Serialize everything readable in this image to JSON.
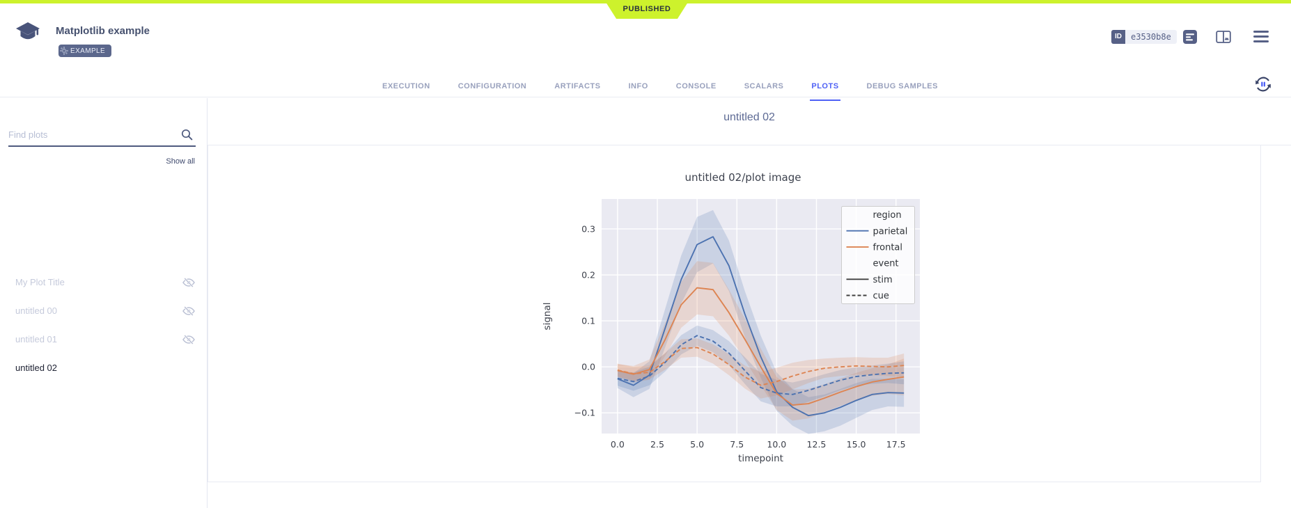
{
  "status_ribbon": {
    "label": "PUBLISHED"
  },
  "colors": {
    "ribbon": "#cdf22c",
    "active_tab": "#4f61f5",
    "accent_slate": "#566086"
  },
  "header": {
    "title": "Matplotlib example",
    "tag": "EXAMPLE",
    "id_label": "ID",
    "id_value": "e3530b8e"
  },
  "tabs": [
    {
      "label": "EXECUTION",
      "active": false
    },
    {
      "label": "CONFIGURATION",
      "active": false
    },
    {
      "label": "ARTIFACTS",
      "active": false
    },
    {
      "label": "INFO",
      "active": false
    },
    {
      "label": "CONSOLE",
      "active": false
    },
    {
      "label": "SCALARS",
      "active": false
    },
    {
      "label": "PLOTS",
      "active": true
    },
    {
      "label": "DEBUG SAMPLES",
      "active": false
    }
  ],
  "sidebar": {
    "search_placeholder": "Find plots",
    "search_value": "",
    "show_all": "Show all",
    "items": [
      {
        "label": "My Plot Title",
        "hidden": true
      },
      {
        "label": "untitled 00",
        "hidden": true
      },
      {
        "label": "untitled 01",
        "hidden": true
      },
      {
        "label": "untitled 02",
        "hidden": false,
        "selected": true
      }
    ]
  },
  "main": {
    "group_title": "untitled 02"
  },
  "chart_data": {
    "type": "line",
    "title": "untitled 02/plot image",
    "xlabel": "timepoint",
    "ylabel": "signal",
    "xlim": [
      -1,
      19
    ],
    "ylim": [
      -0.145,
      0.365
    ],
    "xticks": [
      0.0,
      2.5,
      5.0,
      7.5,
      10.0,
      12.5,
      15.0,
      17.5
    ],
    "yticks": [
      -0.1,
      0.0,
      0.1,
      0.2,
      0.3
    ],
    "grid": true,
    "background": "#eaeaf2",
    "x": [
      0,
      1,
      2,
      3,
      4,
      5,
      6,
      7,
      8,
      9,
      10,
      11,
      12,
      13,
      14,
      15,
      16,
      17,
      18
    ],
    "series": [
      {
        "name": "parietal-stim",
        "region": "parietal",
        "event": "stim",
        "color": "#4c72b0",
        "dash": false,
        "values": [
          -0.026,
          -0.04,
          -0.018,
          0.085,
          0.19,
          0.266,
          0.283,
          0.22,
          0.115,
          0.022,
          -0.054,
          -0.088,
          -0.106,
          -0.1,
          -0.088,
          -0.073,
          -0.06,
          -0.056,
          -0.057
        ],
        "ci": [
          0.02,
          0.026,
          0.03,
          0.042,
          0.052,
          0.06,
          0.058,
          0.055,
          0.05,
          0.046,
          0.042,
          0.04,
          0.04,
          0.04,
          0.04,
          0.038,
          0.034,
          0.03,
          0.03
        ]
      },
      {
        "name": "frontal-stim",
        "region": "frontal",
        "event": "stim",
        "color": "#dd8452",
        "dash": false,
        "values": [
          -0.008,
          -0.016,
          -0.006,
          0.06,
          0.135,
          0.172,
          0.168,
          0.118,
          0.06,
          0.0,
          -0.058,
          -0.083,
          -0.08,
          -0.068,
          -0.055,
          -0.043,
          -0.033,
          -0.027,
          -0.022
        ],
        "ci": [
          0.014,
          0.018,
          0.022,
          0.036,
          0.05,
          0.058,
          0.058,
          0.05,
          0.045,
          0.04,
          0.036,
          0.034,
          0.032,
          0.03,
          0.03,
          0.03,
          0.03,
          0.032,
          0.04
        ]
      },
      {
        "name": "parietal-cue",
        "region": "parietal",
        "event": "cue",
        "color": "#4c72b0",
        "dash": true,
        "values": [
          -0.025,
          -0.032,
          -0.02,
          0.01,
          0.048,
          0.068,
          0.056,
          0.03,
          -0.008,
          -0.045,
          -0.057,
          -0.06,
          -0.051,
          -0.04,
          -0.029,
          -0.021,
          -0.017,
          -0.014,
          -0.013
        ],
        "ci": [
          0.016,
          0.02,
          0.02,
          0.02,
          0.021,
          0.022,
          0.024,
          0.026,
          0.029,
          0.03,
          0.029,
          0.026,
          0.025,
          0.024,
          0.022,
          0.02,
          0.02,
          0.021,
          0.025
        ]
      },
      {
        "name": "frontal-cue",
        "region": "frontal",
        "event": "cue",
        "color": "#dd8452",
        "dash": true,
        "values": [
          -0.007,
          -0.015,
          -0.012,
          0.012,
          0.04,
          0.042,
          0.028,
          0.005,
          -0.022,
          -0.04,
          -0.032,
          -0.02,
          -0.01,
          -0.003,
          0.0,
          0.002,
          0.001,
          0.0,
          0.003
        ],
        "ci": [
          0.014,
          0.015,
          0.015,
          0.018,
          0.02,
          0.02,
          0.021,
          0.023,
          0.025,
          0.029,
          0.03,
          0.029,
          0.025,
          0.021,
          0.02,
          0.019,
          0.019,
          0.02,
          0.026
        ]
      }
    ],
    "legend": {
      "position": "upper right",
      "entries": [
        {
          "label": "region",
          "type": "header"
        },
        {
          "label": "parietal",
          "type": "line",
          "color": "#4c72b0",
          "dash": false
        },
        {
          "label": "frontal",
          "type": "line",
          "color": "#dd8452",
          "dash": false
        },
        {
          "label": "event",
          "type": "header"
        },
        {
          "label": "stim",
          "type": "line",
          "color": "#404040",
          "dash": false
        },
        {
          "label": "cue",
          "type": "line",
          "color": "#404040",
          "dash": true
        }
      ]
    }
  }
}
